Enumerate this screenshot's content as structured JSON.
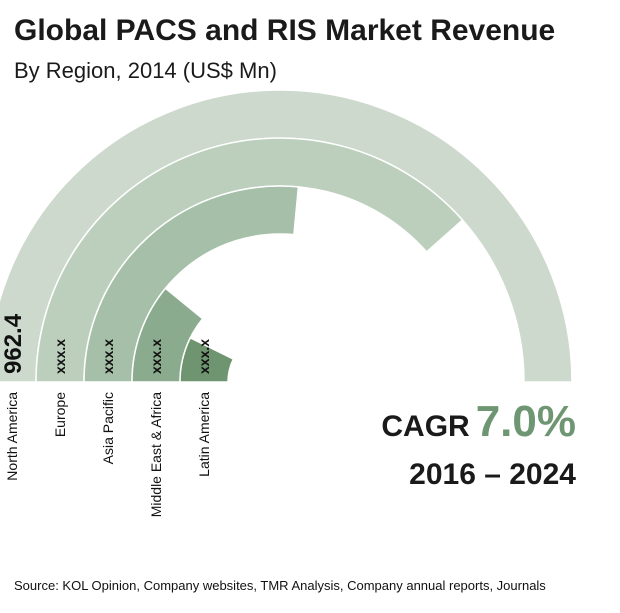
{
  "chart_data": {
    "type": "radial_bar",
    "title": "Global PACS and RIS Market Revenue",
    "subtitle": "By Region, 2014 (US$ Mn)",
    "categories": [
      "North America",
      "Europe",
      "Asia Pacific",
      "Middle East & Africa",
      "Latin America"
    ],
    "value_labels": [
      "962.4",
      "xxx.x",
      "xxx.x",
      "xxx.x",
      "xxx.x"
    ],
    "values": [
      962.4,
      740,
      510,
      210,
      140
    ],
    "colors": [
      "#ccd9cc",
      "#bccfbd",
      "#a6bfa8",
      "#8bab8e",
      "#6e9470"
    ]
  },
  "cagr": {
    "label": "CAGR",
    "value": "7.0%",
    "period": "2016 – 2024",
    "value_color": "#6e9672"
  },
  "source": "Source: KOL Opinion, Company websites, TMR Analysis, Company annual reports, Journals"
}
